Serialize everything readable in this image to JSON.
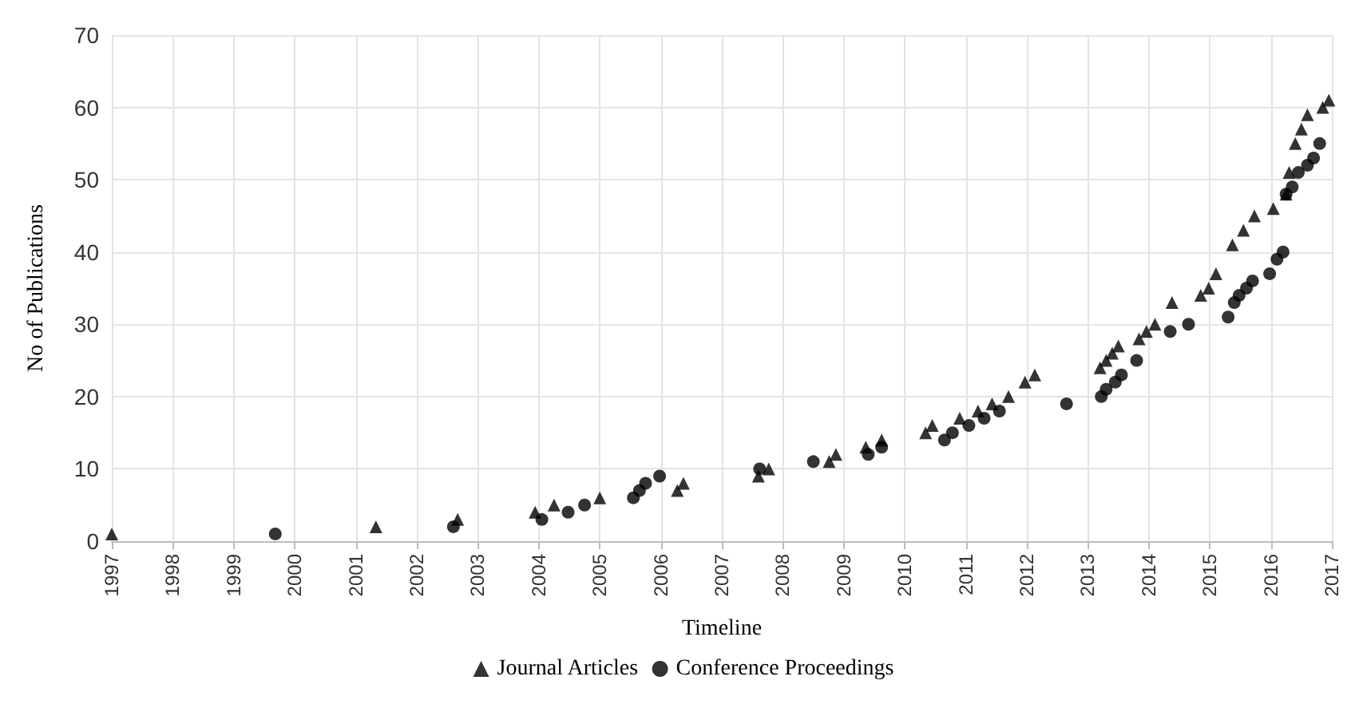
{
  "chart_data": {
    "type": "scatter",
    "xlabel": "Timeline",
    "ylabel": "No of Publications",
    "xlim": [
      1997,
      2017
    ],
    "xticks": [
      1997,
      1998,
      1999,
      2000,
      2001,
      2002,
      2003,
      2004,
      2005,
      2006,
      2007,
      2008,
      2009,
      2010,
      2011,
      2012,
      2013,
      2014,
      2015,
      2016,
      2017
    ],
    "ylim": [
      0,
      70
    ],
    "yticks": [
      0,
      10,
      20,
      30,
      40,
      50,
      60,
      70
    ],
    "grid": true,
    "legend": "bottom",
    "series": [
      {
        "name": "Journal Articles",
        "color": "#000000",
        "marker": "triangle",
        "x": [
          1997.0,
          2001.33,
          2002.67,
          2003.94,
          2004.25,
          2005.0,
          2006.27,
          2006.37,
          2007.6,
          2007.77,
          2008.76,
          2008.87,
          2009.36,
          2009.62,
          2010.34,
          2010.45,
          2010.9,
          2011.2,
          2011.43,
          2011.7,
          2011.97,
          2012.13,
          2013.2,
          2013.3,
          2013.4,
          2013.5,
          2013.84,
          2013.96,
          2014.1,
          2014.38,
          2014.85,
          2014.98,
          2015.1,
          2015.37,
          2015.55,
          2015.73,
          2016.04,
          2016.25,
          2016.3,
          2016.4,
          2016.5,
          2016.6,
          2016.85,
          2016.95
        ],
        "values": [
          1,
          2,
          3,
          4,
          5,
          6,
          7,
          8,
          9,
          10,
          11,
          12,
          13,
          14,
          15,
          16,
          17,
          18,
          19,
          20,
          22,
          23,
          24,
          25,
          26,
          27,
          28,
          29,
          30,
          33,
          34,
          35,
          37,
          41,
          43,
          45,
          46,
          48,
          51,
          55,
          57,
          59,
          60,
          61
        ]
      },
      {
        "name": "Conference Proceedings",
        "color": "#000000",
        "marker": "circle",
        "x": [
          1999.68,
          2002.6,
          2004.05,
          2004.48,
          2004.75,
          2005.55,
          2005.65,
          2005.75,
          2005.98,
          2007.62,
          2008.5,
          2009.4,
          2009.62,
          2010.65,
          2010.78,
          2011.05,
          2011.3,
          2011.55,
          2012.65,
          2013.22,
          2013.3,
          2013.45,
          2013.55,
          2013.8,
          2014.35,
          2014.65,
          2015.3,
          2015.4,
          2015.48,
          2015.6,
          2015.7,
          2015.98,
          2016.1,
          2016.2,
          2016.25,
          2016.35,
          2016.45,
          2016.6,
          2016.7,
          2016.8
        ],
        "values": [
          1,
          2,
          3,
          4,
          5,
          6,
          7,
          8,
          9,
          10,
          11,
          12,
          13,
          14,
          15,
          16,
          17,
          18,
          19,
          20,
          21,
          22,
          23,
          25,
          29,
          30,
          31,
          33,
          34,
          35,
          36,
          37,
          39,
          40,
          48,
          49,
          51,
          52,
          53,
          55
        ]
      }
    ]
  }
}
